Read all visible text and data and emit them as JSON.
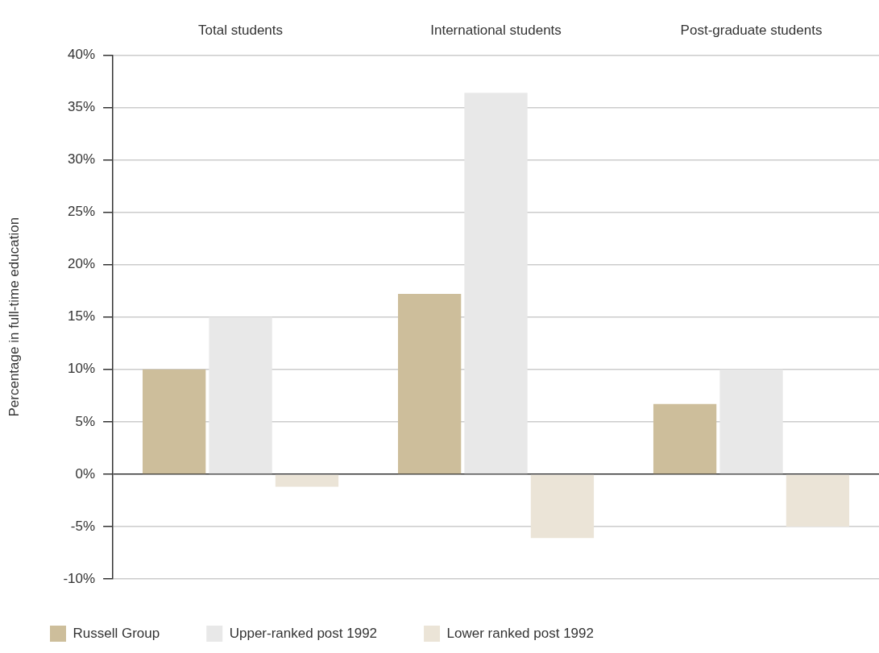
{
  "chart_data": {
    "type": "bar",
    "ylabel": "Percentage in full-time education",
    "categories": [
      "Total students",
      "International students",
      "Post-graduate students"
    ],
    "series": [
      {
        "name": "Russell Group",
        "color": "#cdbe9b",
        "values": [
          10,
          17.2,
          6.7
        ]
      },
      {
        "name": "Upper-ranked post 1992",
        "color": "#e8e8e8",
        "values": [
          15,
          36.4,
          10
        ]
      },
      {
        "name": "Lower ranked post 1992",
        "color": "#ebe4d7",
        "values": [
          -1.2,
          -6.1,
          -5
        ]
      }
    ],
    "ylim": [
      -10,
      40
    ],
    "yticks": [
      {
        "value": -10,
        "label": "-10%"
      },
      {
        "value": -5,
        "label": "-5%"
      },
      {
        "value": 0,
        "label": "0%"
      },
      {
        "value": 5,
        "label": "5%"
      },
      {
        "value": 10,
        "label": "10%"
      },
      {
        "value": 15,
        "label": "15%"
      },
      {
        "value": 20,
        "label": "20%"
      },
      {
        "value": 25,
        "label": "25%"
      },
      {
        "value": 30,
        "label": "30%"
      },
      {
        "value": 35,
        "label": "35%"
      },
      {
        "value": 40,
        "label": "40%"
      }
    ],
    "grid": "y",
    "legend": "bottom"
  }
}
